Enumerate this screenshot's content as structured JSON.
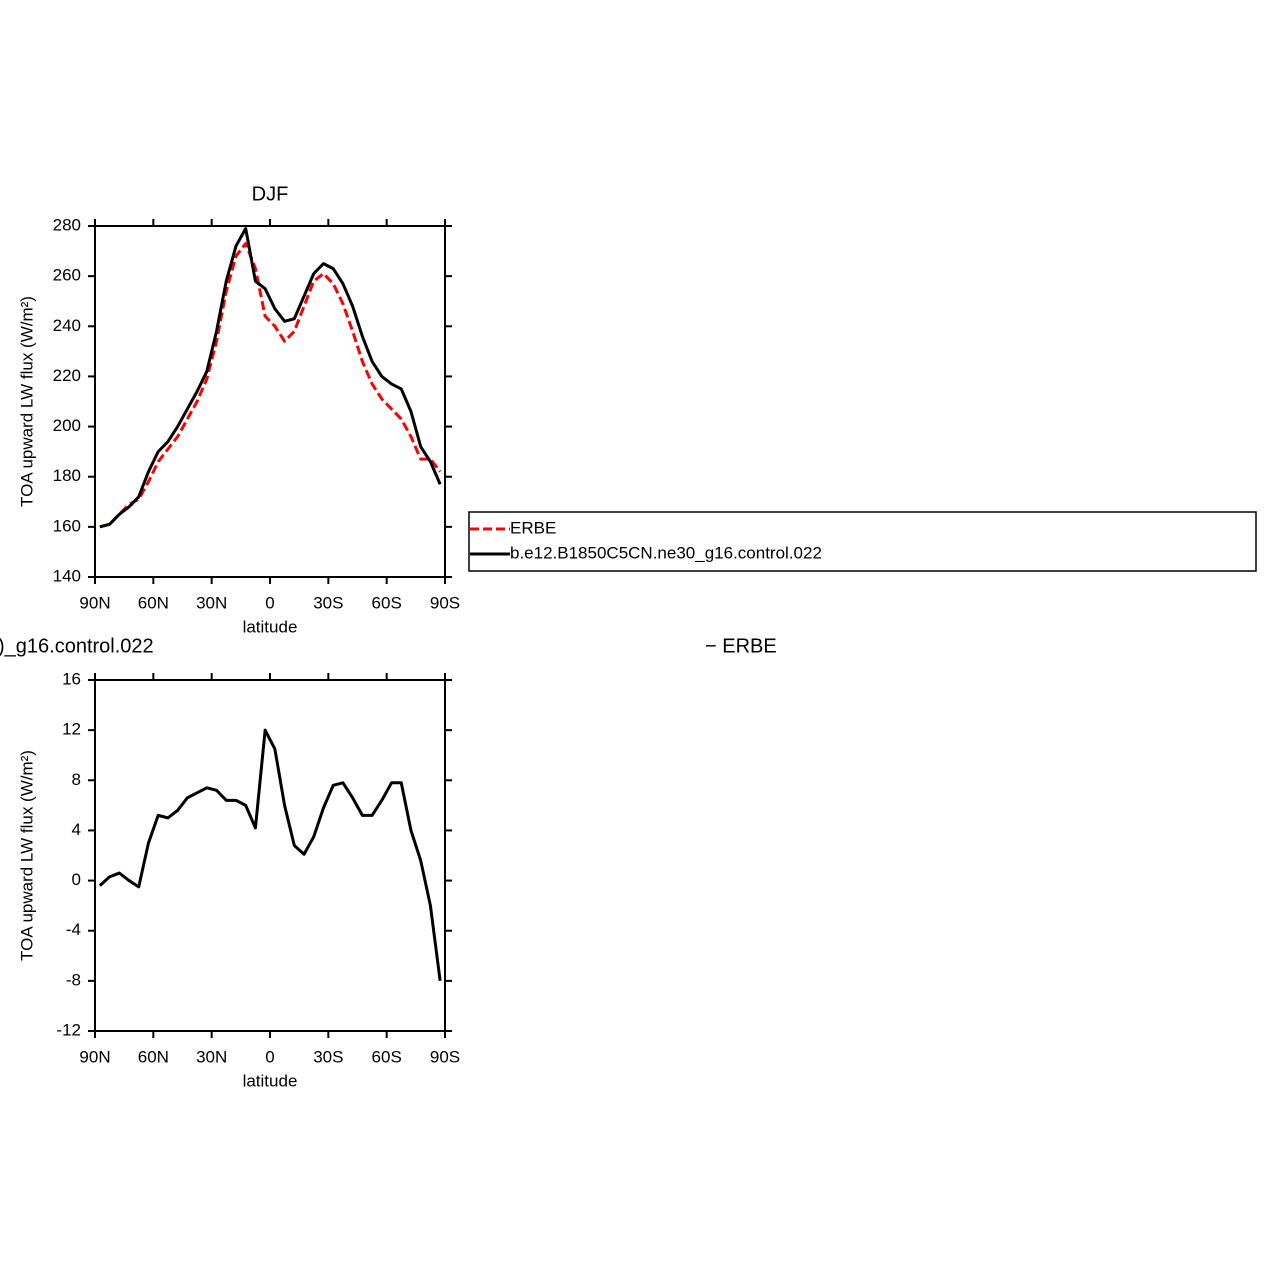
{
  "chart_data": [
    {
      "type": "line",
      "title": "DJF",
      "xlabel": "latitude",
      "ylabel": "TOA upward LW flux (W/m²)",
      "x": [
        87.5,
        82.5,
        77.5,
        72.5,
        67.5,
        62.5,
        57.5,
        52.5,
        47.5,
        42.5,
        37.5,
        32.5,
        27.5,
        22.5,
        17.5,
        12.5,
        7.5,
        2.5,
        -2.5,
        -7.5,
        -12.5,
        -17.5,
        -22.5,
        -27.5,
        -32.5,
        -37.5,
        -42.5,
        -47.5,
        -52.5,
        -57.5,
        -62.5,
        -67.5,
        -72.5,
        -77.5,
        -82.5,
        -87.5
      ],
      "series": [
        {
          "name": "ERBE",
          "color": "#ff0000",
          "dashed": true,
          "values": [
            160,
            161,
            165,
            169,
            171,
            178,
            186,
            191,
            196,
            203,
            210,
            219,
            234,
            254,
            268,
            273,
            263,
            244,
            240,
            234,
            238,
            248,
            258,
            261,
            257,
            249,
            238,
            226,
            217,
            211,
            207,
            203,
            196,
            187,
            187,
            182
          ]
        },
        {
          "name": "b.e12.B1850C5CN.ne30_g16.control.022",
          "color": "#000000",
          "dashed": false,
          "values": [
            160,
            161,
            165,
            168,
            172,
            182,
            190,
            194,
            200,
            207,
            214,
            222,
            238,
            258,
            272,
            279,
            258,
            255,
            247,
            242,
            243,
            252,
            261,
            265,
            263,
            257,
            248,
            236,
            226,
            220,
            217,
            215,
            206,
            192,
            186,
            177
          ]
        }
      ],
      "xlim": [
        90,
        -90
      ],
      "xticks": [
        {
          "value": 90,
          "label": "90N"
        },
        {
          "value": 60,
          "label": "60N"
        },
        {
          "value": 30,
          "label": "30N"
        },
        0,
        {
          "value": -30,
          "label": "30S"
        },
        {
          "value": -60,
          "label": "60S"
        },
        {
          "value": -90,
          "label": "90S"
        }
      ],
      "ylim": [
        140,
        280
      ],
      "yticks": [
        140,
        160,
        180,
        200,
        220,
        240,
        260,
        280
      ],
      "legend": "outside-right"
    },
    {
      "type": "line",
      "titles": [
        ")_g16.control.022",
        "− ERBE"
      ],
      "xlabel": "latitude",
      "ylabel": "TOA upward LW flux (W/m²)",
      "x": [
        87.5,
        82.5,
        77.5,
        72.5,
        67.5,
        62.5,
        57.5,
        52.5,
        47.5,
        42.5,
        37.5,
        32.5,
        27.5,
        22.5,
        17.5,
        12.5,
        7.5,
        2.5,
        -2.5,
        -7.5,
        -12.5,
        -17.5,
        -22.5,
        -27.5,
        -32.5,
        -37.5,
        -42.5,
        -47.5,
        -52.5,
        -57.5,
        -62.5,
        -67.5,
        -72.5,
        -77.5,
        -82.5,
        -87.5
      ],
      "series": [
        {
          "color": "#000000",
          "dashed": false,
          "values": [
            -0.4,
            0.3,
            0.6,
            0,
            -0.5,
            3,
            5.2,
            5,
            5.6,
            6.6,
            7,
            7.4,
            7.2,
            6.4,
            6.4,
            6,
            4.2,
            12,
            10.5,
            6,
            2.8,
            2.1,
            3.5,
            5.8,
            7.6,
            7.8,
            6.6,
            5.2,
            5.2,
            6.4,
            7.8,
            7.8,
            4,
            1.6,
            -2,
            -8
          ]
        }
      ],
      "xlim": [
        90,
        -90
      ],
      "xticks": [
        {
          "value": 90,
          "label": "90N"
        },
        {
          "value": 60,
          "label": "60N"
        },
        {
          "value": 30,
          "label": "30N"
        },
        0,
        {
          "value": -30,
          "label": "30S"
        },
        {
          "value": -60,
          "label": "60S"
        },
        {
          "value": -90,
          "label": "90S"
        }
      ],
      "ylim": [
        -12,
        16
      ],
      "yticks": [
        -12,
        -8,
        -4,
        0,
        4,
        8,
        12,
        16
      ]
    }
  ]
}
